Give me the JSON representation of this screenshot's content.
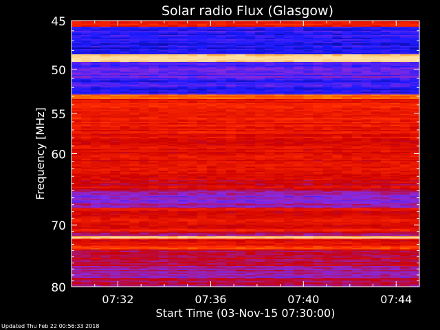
{
  "chart_data": {
    "type": "heatmap",
    "title": "Solar radio Flux (Glasgow)",
    "xlabel": "Start Time (03-Nov-15 07:30:00)",
    "ylabel": "Frequency [MHz]",
    "xlim": [
      "07:30:00",
      "07:45:00"
    ],
    "ylim": [
      45,
      80
    ],
    "x_ticks": [
      "07:32",
      "07:36",
      "07:40",
      "07:44"
    ],
    "y_ticks": [
      "45",
      "50",
      "55",
      "60",
      "70",
      "80"
    ],
    "colormap": [
      "#000060",
      "#1a1aff",
      "#8a2be2",
      "#cc0000",
      "#ff2a00",
      "#ff8a00",
      "#ffe0a0"
    ],
    "bands": [
      {
        "f": [
          45.0,
          45.6
        ],
        "level": 0.62
      },
      {
        "f": [
          45.6,
          48.4
        ],
        "level": 0.18
      },
      {
        "f": [
          48.4,
          48.6
        ],
        "level": 0.9
      },
      {
        "f": [
          48.6,
          49.2
        ],
        "level": 1.0
      },
      {
        "f": [
          49.2,
          49.8
        ],
        "level": 0.22
      },
      {
        "f": [
          49.8,
          50.9
        ],
        "level": 0.28
      },
      {
        "f": [
          50.9,
          52.8
        ],
        "level": 0.2
      },
      {
        "f": [
          52.8,
          53.3
        ],
        "level": 0.8
      },
      {
        "f": [
          53.3,
          57.0
        ],
        "level": 0.6
      },
      {
        "f": [
          57.0,
          63.0
        ],
        "level": 0.58
      },
      {
        "f": [
          63.0,
          65.0
        ],
        "level": 0.52
      },
      {
        "f": [
          65.0,
          67.5
        ],
        "level": 0.36
      },
      {
        "f": [
          67.5,
          68.5
        ],
        "level": 0.55
      },
      {
        "f": [
          68.5,
          71.0
        ],
        "level": 0.58
      },
      {
        "f": [
          71.0,
          71.7
        ],
        "level": 0.45
      },
      {
        "f": [
          71.7,
          72.1
        ],
        "level": 0.96
      },
      {
        "f": [
          72.1,
          73.2
        ],
        "level": 0.55
      },
      {
        "f": [
          73.2,
          73.8
        ],
        "level": 0.72
      },
      {
        "f": [
          73.8,
          76.5
        ],
        "level": 0.48
      },
      {
        "f": [
          76.5,
          78.5
        ],
        "level": 0.38
      },
      {
        "f": [
          78.5,
          80.0
        ],
        "level": 0.44
      }
    ]
  },
  "footer": {
    "updated": "Updated Thu Feb 22 00:56:33 2018"
  }
}
